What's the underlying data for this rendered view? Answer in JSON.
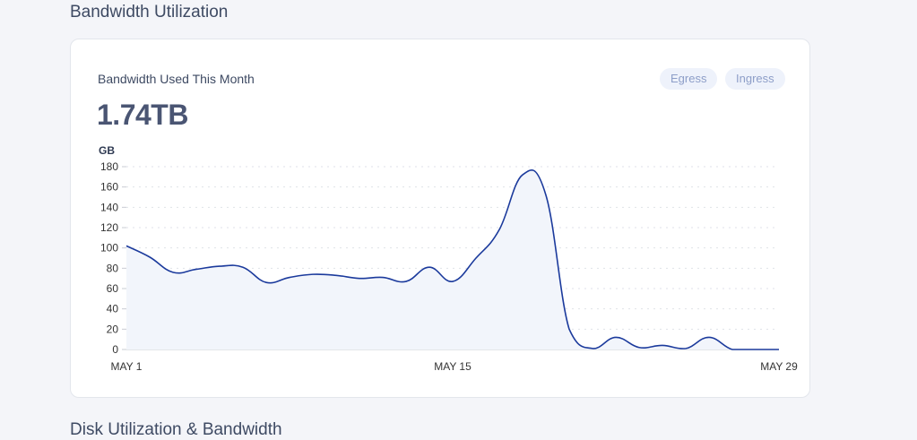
{
  "page": {
    "section_title": "Bandwidth Utilization",
    "next_section_title": "Disk Utilization & Bandwidth"
  },
  "card": {
    "label": "Bandwidth Used This Month",
    "value": "1.74TB",
    "toggles": [
      {
        "label": "Egress"
      },
      {
        "label": "Ingress"
      }
    ]
  },
  "chart_data": {
    "type": "area",
    "ylabel": "GB",
    "ylim": [
      0,
      180
    ],
    "yticks": [
      "0",
      "20",
      "40",
      "60",
      "80",
      "100",
      "120",
      "140",
      "160",
      "180"
    ],
    "xticks": [
      {
        "day": 1,
        "label": "MAY 1"
      },
      {
        "day": 15,
        "label": "MAY 15"
      },
      {
        "day": 29,
        "label": "MAY 29"
      }
    ],
    "x": [
      1,
      2,
      3,
      4,
      5,
      6,
      7,
      8,
      9,
      10,
      11,
      12,
      13,
      14,
      15,
      16,
      17,
      18,
      19,
      20,
      21,
      22,
      23,
      24,
      25,
      26,
      27,
      28,
      29
    ],
    "values": [
      102,
      91,
      76,
      79,
      82,
      81,
      66,
      71,
      74,
      73,
      70,
      71,
      67,
      81,
      67,
      90,
      118,
      172,
      152,
      20,
      1,
      12,
      2,
      4,
      1,
      12,
      0,
      0,
      0
    ],
    "grid": "horizontal dotted",
    "colors": {
      "line": "#1b3a9c",
      "fill": "#f2f5fb",
      "grid": "#dfe2e8"
    }
  }
}
